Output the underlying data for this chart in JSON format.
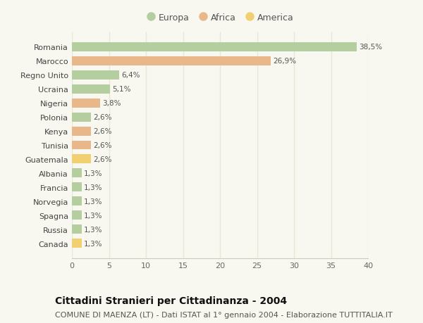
{
  "categories": [
    "Romania",
    "Marocco",
    "Regno Unito",
    "Ucraina",
    "Nigeria",
    "Polonia",
    "Kenya",
    "Tunisia",
    "Guatemala",
    "Albania",
    "Francia",
    "Norvegia",
    "Spagna",
    "Russia",
    "Canada"
  ],
  "values": [
    38.5,
    26.9,
    6.4,
    5.1,
    3.8,
    2.6,
    2.6,
    2.6,
    2.6,
    1.3,
    1.3,
    1.3,
    1.3,
    1.3,
    1.3
  ],
  "labels": [
    "38,5%",
    "26,9%",
    "6,4%",
    "5,1%",
    "3,8%",
    "2,6%",
    "2,6%",
    "2,6%",
    "2,6%",
    "1,3%",
    "1,3%",
    "1,3%",
    "1,3%",
    "1,3%",
    "1,3%"
  ],
  "colors": [
    "#b5ceA0",
    "#e8b88a",
    "#b5ceA0",
    "#b5ceA0",
    "#e8b88a",
    "#b5ceA0",
    "#e8b88a",
    "#e8b88a",
    "#f0d070",
    "#b5ceA0",
    "#b5ceA0",
    "#b5ceA0",
    "#b5ceA0",
    "#b5ceA0",
    "#f0d070"
  ],
  "legend_labels": [
    "Europa",
    "Africa",
    "America"
  ],
  "legend_colors": [
    "#b5ceA0",
    "#e8b88a",
    "#f0d070"
  ],
  "title": "Cittadini Stranieri per Cittadinanza - 2004",
  "subtitle": "COMUNE DI MAENZA (LT) - Dati ISTAT al 1° gennaio 2004 - Elaborazione TUTTITALIA.IT",
  "xlim": [
    0,
    40
  ],
  "xticks": [
    0,
    5,
    10,
    15,
    20,
    25,
    30,
    35,
    40
  ],
  "background_color": "#f8f8f0",
  "grid_color": "#e8e8d8",
  "bar_height": 0.65,
  "title_fontsize": 10,
  "subtitle_fontsize": 8
}
